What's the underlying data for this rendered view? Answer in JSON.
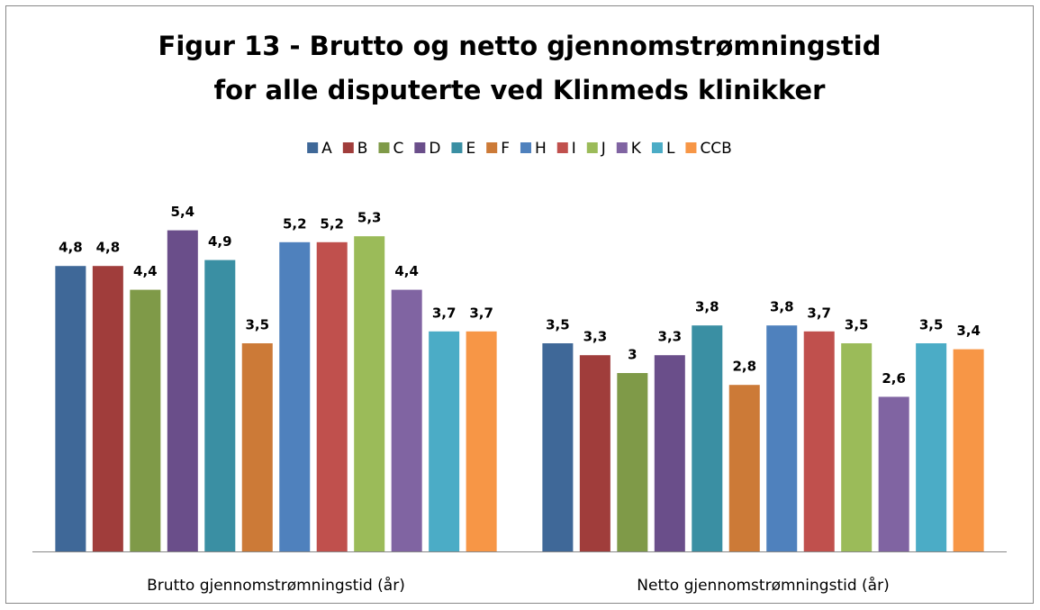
{
  "chart_data": {
    "type": "bar",
    "title": [
      "Figur 13 - Brutto og netto gjennomstrømningstid",
      "for alle disputerte ved Klinmeds klinikker"
    ],
    "categories": [
      "Brutto gjennomstrømningstid (år)",
      "Netto gjennomstrømningstid (år)"
    ],
    "ylim": [
      0,
      6
    ],
    "legend": "top",
    "series": [
      {
        "name": "A",
        "color": "#3f6898",
        "values": [
          4.8,
          3.5
        ],
        "value_labels": [
          "4,8",
          "3,5"
        ]
      },
      {
        "name": "B",
        "color": "#a03d3b",
        "values": [
          4.8,
          3.3
        ],
        "value_labels": [
          "4,8",
          "3,3"
        ]
      },
      {
        "name": "C",
        "color": "#7f9a48",
        "values": [
          4.4,
          3
        ],
        "value_labels": [
          "4,4",
          "3"
        ]
      },
      {
        "name": "D",
        "color": "#6a4e8a",
        "values": [
          5.4,
          3.3
        ],
        "value_labels": [
          "5,4",
          "3,3"
        ]
      },
      {
        "name": "E",
        "color": "#3a8fa3",
        "values": [
          4.9,
          3.8
        ],
        "value_labels": [
          "4,9",
          "3,8"
        ]
      },
      {
        "name": "F",
        "color": "#cc7a37",
        "values": [
          3.5,
          2.8
        ],
        "value_labels": [
          "3,5",
          "2,8"
        ]
      },
      {
        "name": "H",
        "color": "#4f81bd",
        "values": [
          5.2,
          3.8
        ],
        "value_labels": [
          "5,2",
          "3,8"
        ]
      },
      {
        "name": "I",
        "color": "#c0504d",
        "values": [
          5.2,
          3.7
        ],
        "value_labels": [
          "5,2",
          "3,7"
        ]
      },
      {
        "name": "J",
        "color": "#9bbb59",
        "values": [
          5.3,
          3.5
        ],
        "value_labels": [
          "5,3",
          "3,5"
        ]
      },
      {
        "name": "K",
        "color": "#8064a2",
        "values": [
          4.4,
          2.6
        ],
        "value_labels": [
          "4,4",
          "2,6"
        ]
      },
      {
        "name": "L",
        "color": "#4bacc6",
        "values": [
          3.7,
          3.5
        ],
        "value_labels": [
          "3,7",
          "3,5"
        ]
      },
      {
        "name": "CCB",
        "color": "#f79646",
        "values": [
          3.7,
          3.4
        ],
        "value_labels": [
          "3,7",
          "3,4"
        ]
      }
    ]
  }
}
